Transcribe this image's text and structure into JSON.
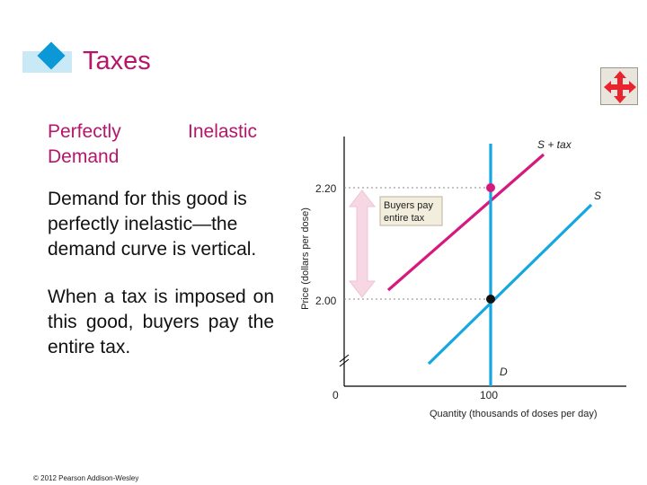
{
  "slide": {
    "title": "Taxes",
    "subtitle_part1": "Perfectly Demand",
    "subtitle_part2": "Inelastic",
    "paragraph1": "Demand for this good is perfectly inelastic—the demand curve is vertical.",
    "paragraph2": "When a tax is imposed on this good, buyers pay the entire tax.",
    "copyright": "© 2012 Pearson Addison-Wesley"
  },
  "nav": {
    "icon": "four-way-arrows-icon"
  },
  "graph": {
    "y_axis_label": "Price (dollars per dose)",
    "x_axis_label": "Quantity (thousands of doses per day)",
    "tick_price_high": "2.20",
    "tick_price_low": "2.00",
    "tick_qty": "100",
    "origin": "0",
    "label_supply_tax": "S + tax",
    "label_supply": "S",
    "label_demand": "D",
    "annotation_line1": "Buyers pay",
    "annotation_line2": "entire tax"
  },
  "colors": {
    "title": "#b5166b",
    "supply_tax_curve": "#d6197f",
    "supply_curve": "#14a7e0",
    "demand_curve": "#14a7e0",
    "arrow_fill": "#f6d7e3",
    "annotation_fill": "#f2eddc",
    "tab_diamond": "#0a99d6"
  }
}
